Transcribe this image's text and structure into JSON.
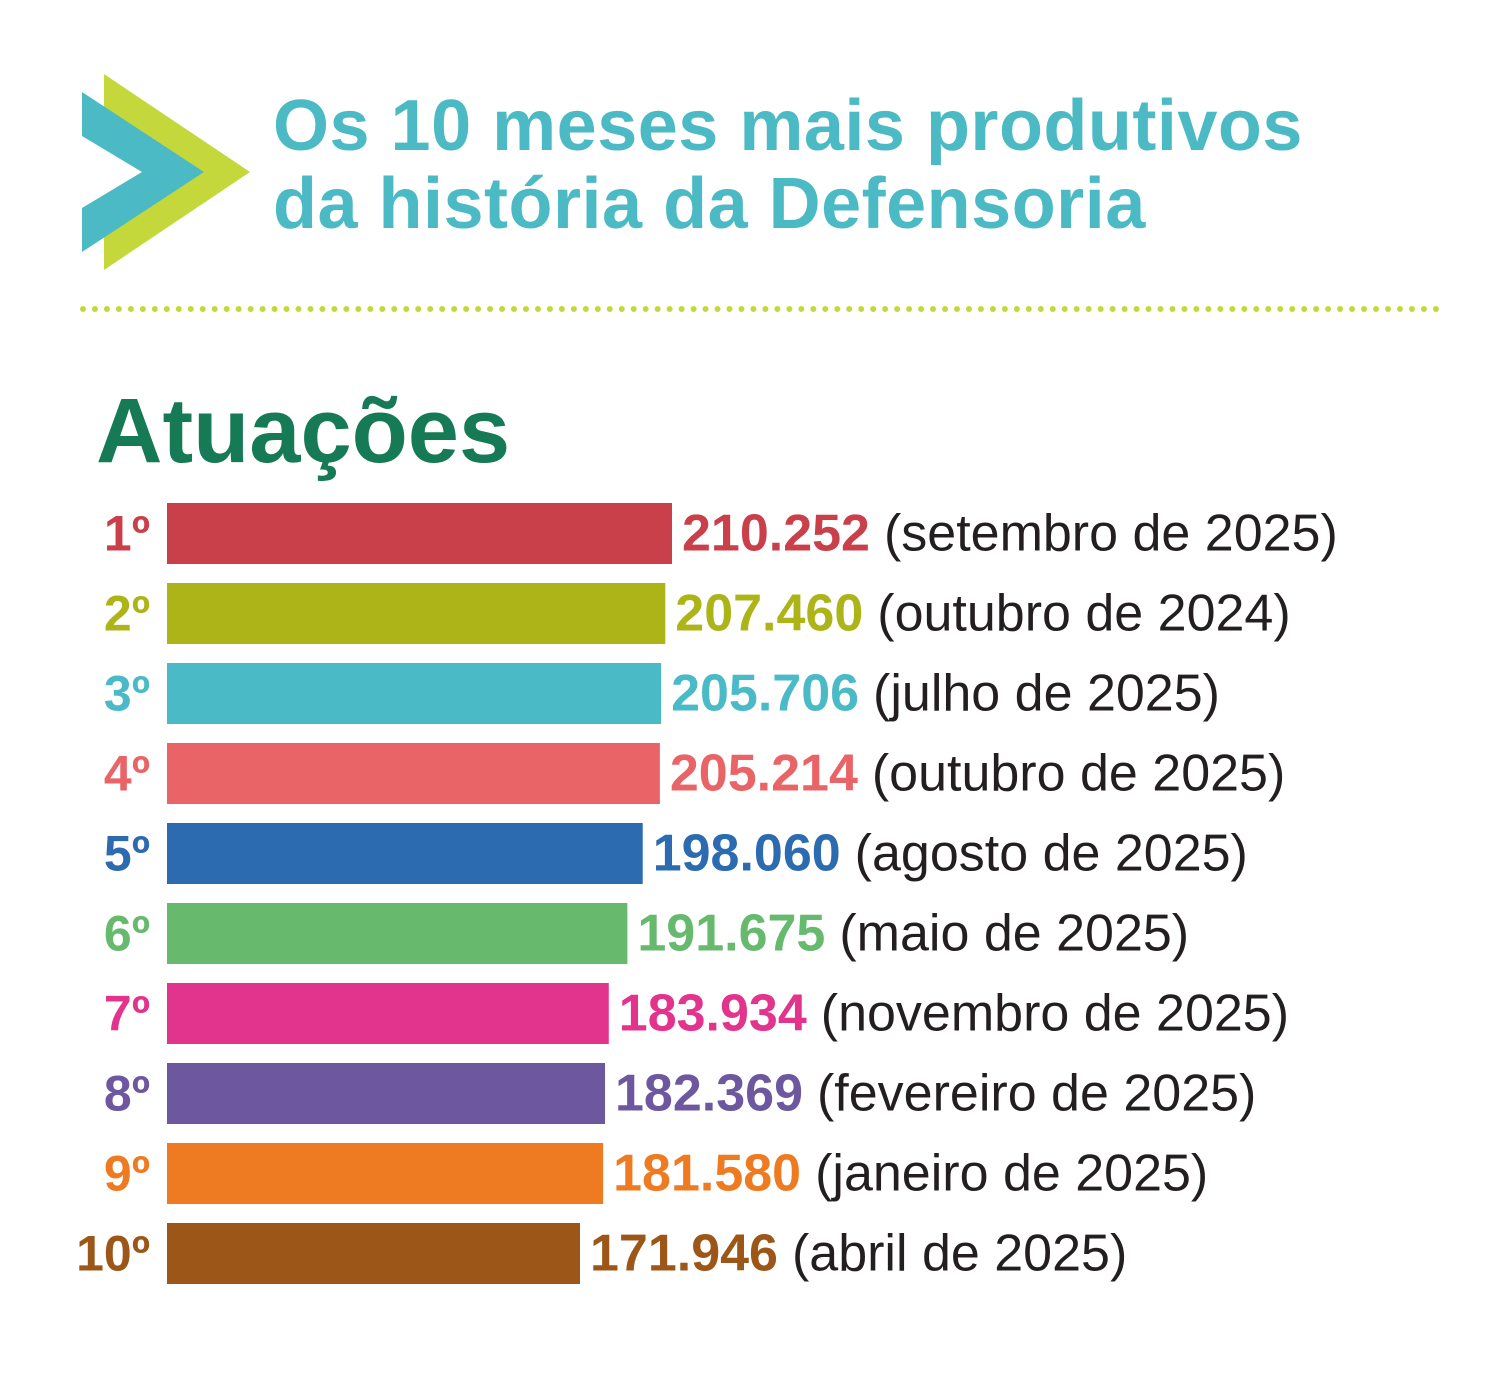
{
  "header": {
    "title_line1": "Os 10 meses mais produtivos",
    "title_line2": "da história da Defensoria",
    "section_title": "Atuações"
  },
  "colors": {
    "title": "#4bbac4",
    "section": "#157a55",
    "divider": "#c5d83b",
    "logo_back": "#c5d83b",
    "logo_front": "#4bbac4"
  },
  "chart_data": {
    "type": "bar",
    "orientation": "horizontal",
    "title": "Atuações",
    "xlabel": "",
    "ylabel": "",
    "categories": [
      "1º",
      "2º",
      "3º",
      "4º",
      "5º",
      "6º",
      "7º",
      "8º",
      "9º",
      "10º"
    ],
    "values": [
      210252,
      207460,
      205706,
      205214,
      198060,
      191675,
      183934,
      182369,
      181580,
      171946
    ],
    "value_labels": [
      "210.252",
      "207.460",
      "205.706",
      "205.214",
      "198.060",
      "191.675",
      "183.934",
      "182.369",
      "181.580",
      "171.946"
    ],
    "period_labels": [
      "(setembro de 2025)",
      "(outubro de 2024)",
      "(julho de 2025)",
      "(outubro de 2025)",
      "(agosto de 2025)",
      "(maio de 2025)",
      "(novembro de 2025)",
      "(fevereiro de 2025)",
      "(janeiro de 2025)",
      "(abril de 2025)"
    ],
    "colors": [
      "#c9404a",
      "#adb417",
      "#49bac6",
      "#e96467",
      "#2c6bb0",
      "#67b96e",
      "#e2348c",
      "#6d58a0",
      "#ee7b22",
      "#9c5718"
    ],
    "grid": false,
    "legend": "none"
  }
}
